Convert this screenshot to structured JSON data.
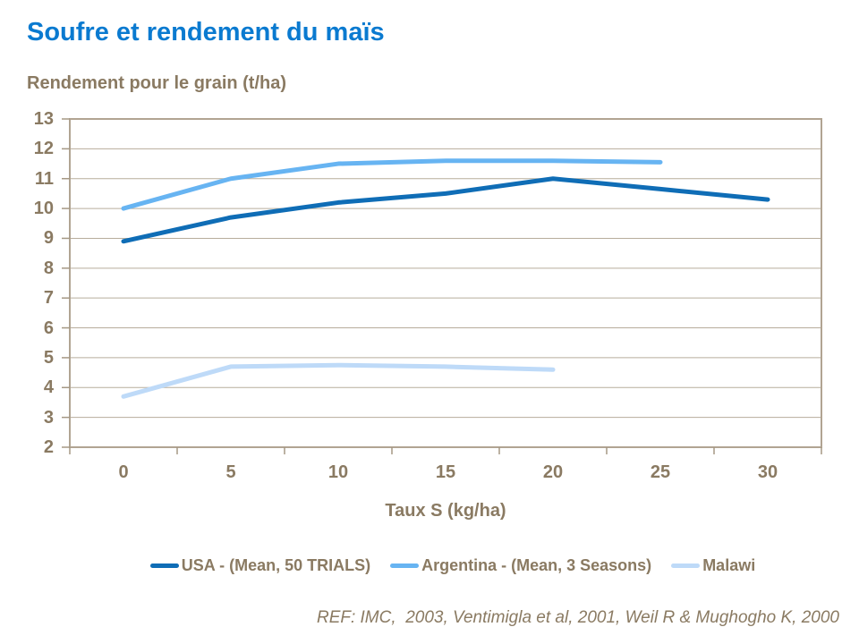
{
  "title": "Soufre et rendement du maïs",
  "subtitle": "Rendement pour le grain (t/ha)",
  "footer": {
    "reference": "REF: IMC,  2003, Ventimigla et al, 2001, Weil R & Mughogho K, 2000"
  },
  "colors": {
    "title": "#0a7ad0",
    "axis_text": "#8a7a62",
    "gridline": "#b7ad9c",
    "plot_border": "#b1a492",
    "usa_line": "#0f6db6",
    "argentina_line": "#67b4f2",
    "malawi_line": "#bedaf8"
  },
  "chart_data": {
    "type": "line",
    "title": "Soufre et rendement du maïs",
    "xlabel": "Taux S (kg/ha)",
    "ylabel": "Rendement pour le grain (t/ha)",
    "x": [
      0,
      5,
      10,
      15,
      20,
      25,
      30
    ],
    "series": [
      {
        "name": "USA - (Mean, 50 TRIALS)",
        "color": "#0f6db6",
        "values": [
          8.9,
          9.7,
          10.2,
          10.5,
          11.0,
          10.65,
          10.3
        ]
      },
      {
        "name": "Argentina - (Mean, 3 Seasons)",
        "color": "#67b4f2",
        "values": [
          10.0,
          11.0,
          11.5,
          11.6,
          11.6,
          11.55
        ]
      },
      {
        "name": "Malawi",
        "color": "#bedaf8",
        "values": [
          3.7,
          4.7,
          4.75,
          4.7,
          4.6
        ]
      }
    ],
    "ylim": [
      2,
      13
    ],
    "yticks": [
      2,
      3,
      4,
      5,
      6,
      7,
      8,
      9,
      10,
      11,
      12,
      13
    ],
    "grid": true,
    "legend_position": "bottom"
  }
}
